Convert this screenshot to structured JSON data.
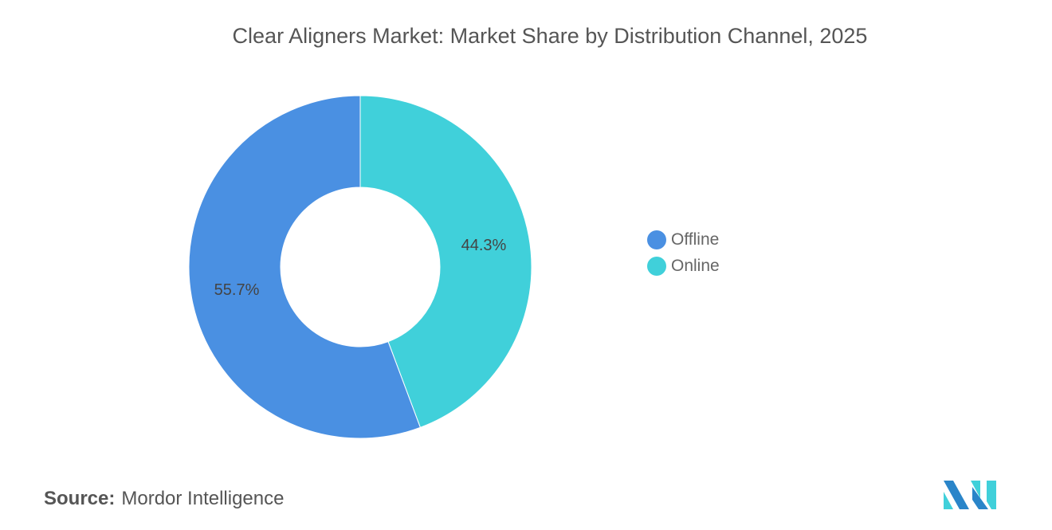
{
  "chart_data": {
    "type": "pie",
    "variant": "donut",
    "title": "Clear Aligners Market: Market Share by Distribution Channel, 2025",
    "categories": [
      "Offline",
      "Online"
    ],
    "values": [
      55.7,
      44.3
    ],
    "labels": [
      "55.7%",
      "44.3%"
    ],
    "colors": [
      "#4a90e2",
      "#40d0da"
    ],
    "legend_position": "right"
  },
  "source": {
    "label": "Source:",
    "value": "Mordor Intelligence"
  },
  "logo": {
    "colors": [
      "#2a85c9",
      "#40d0da"
    ]
  }
}
